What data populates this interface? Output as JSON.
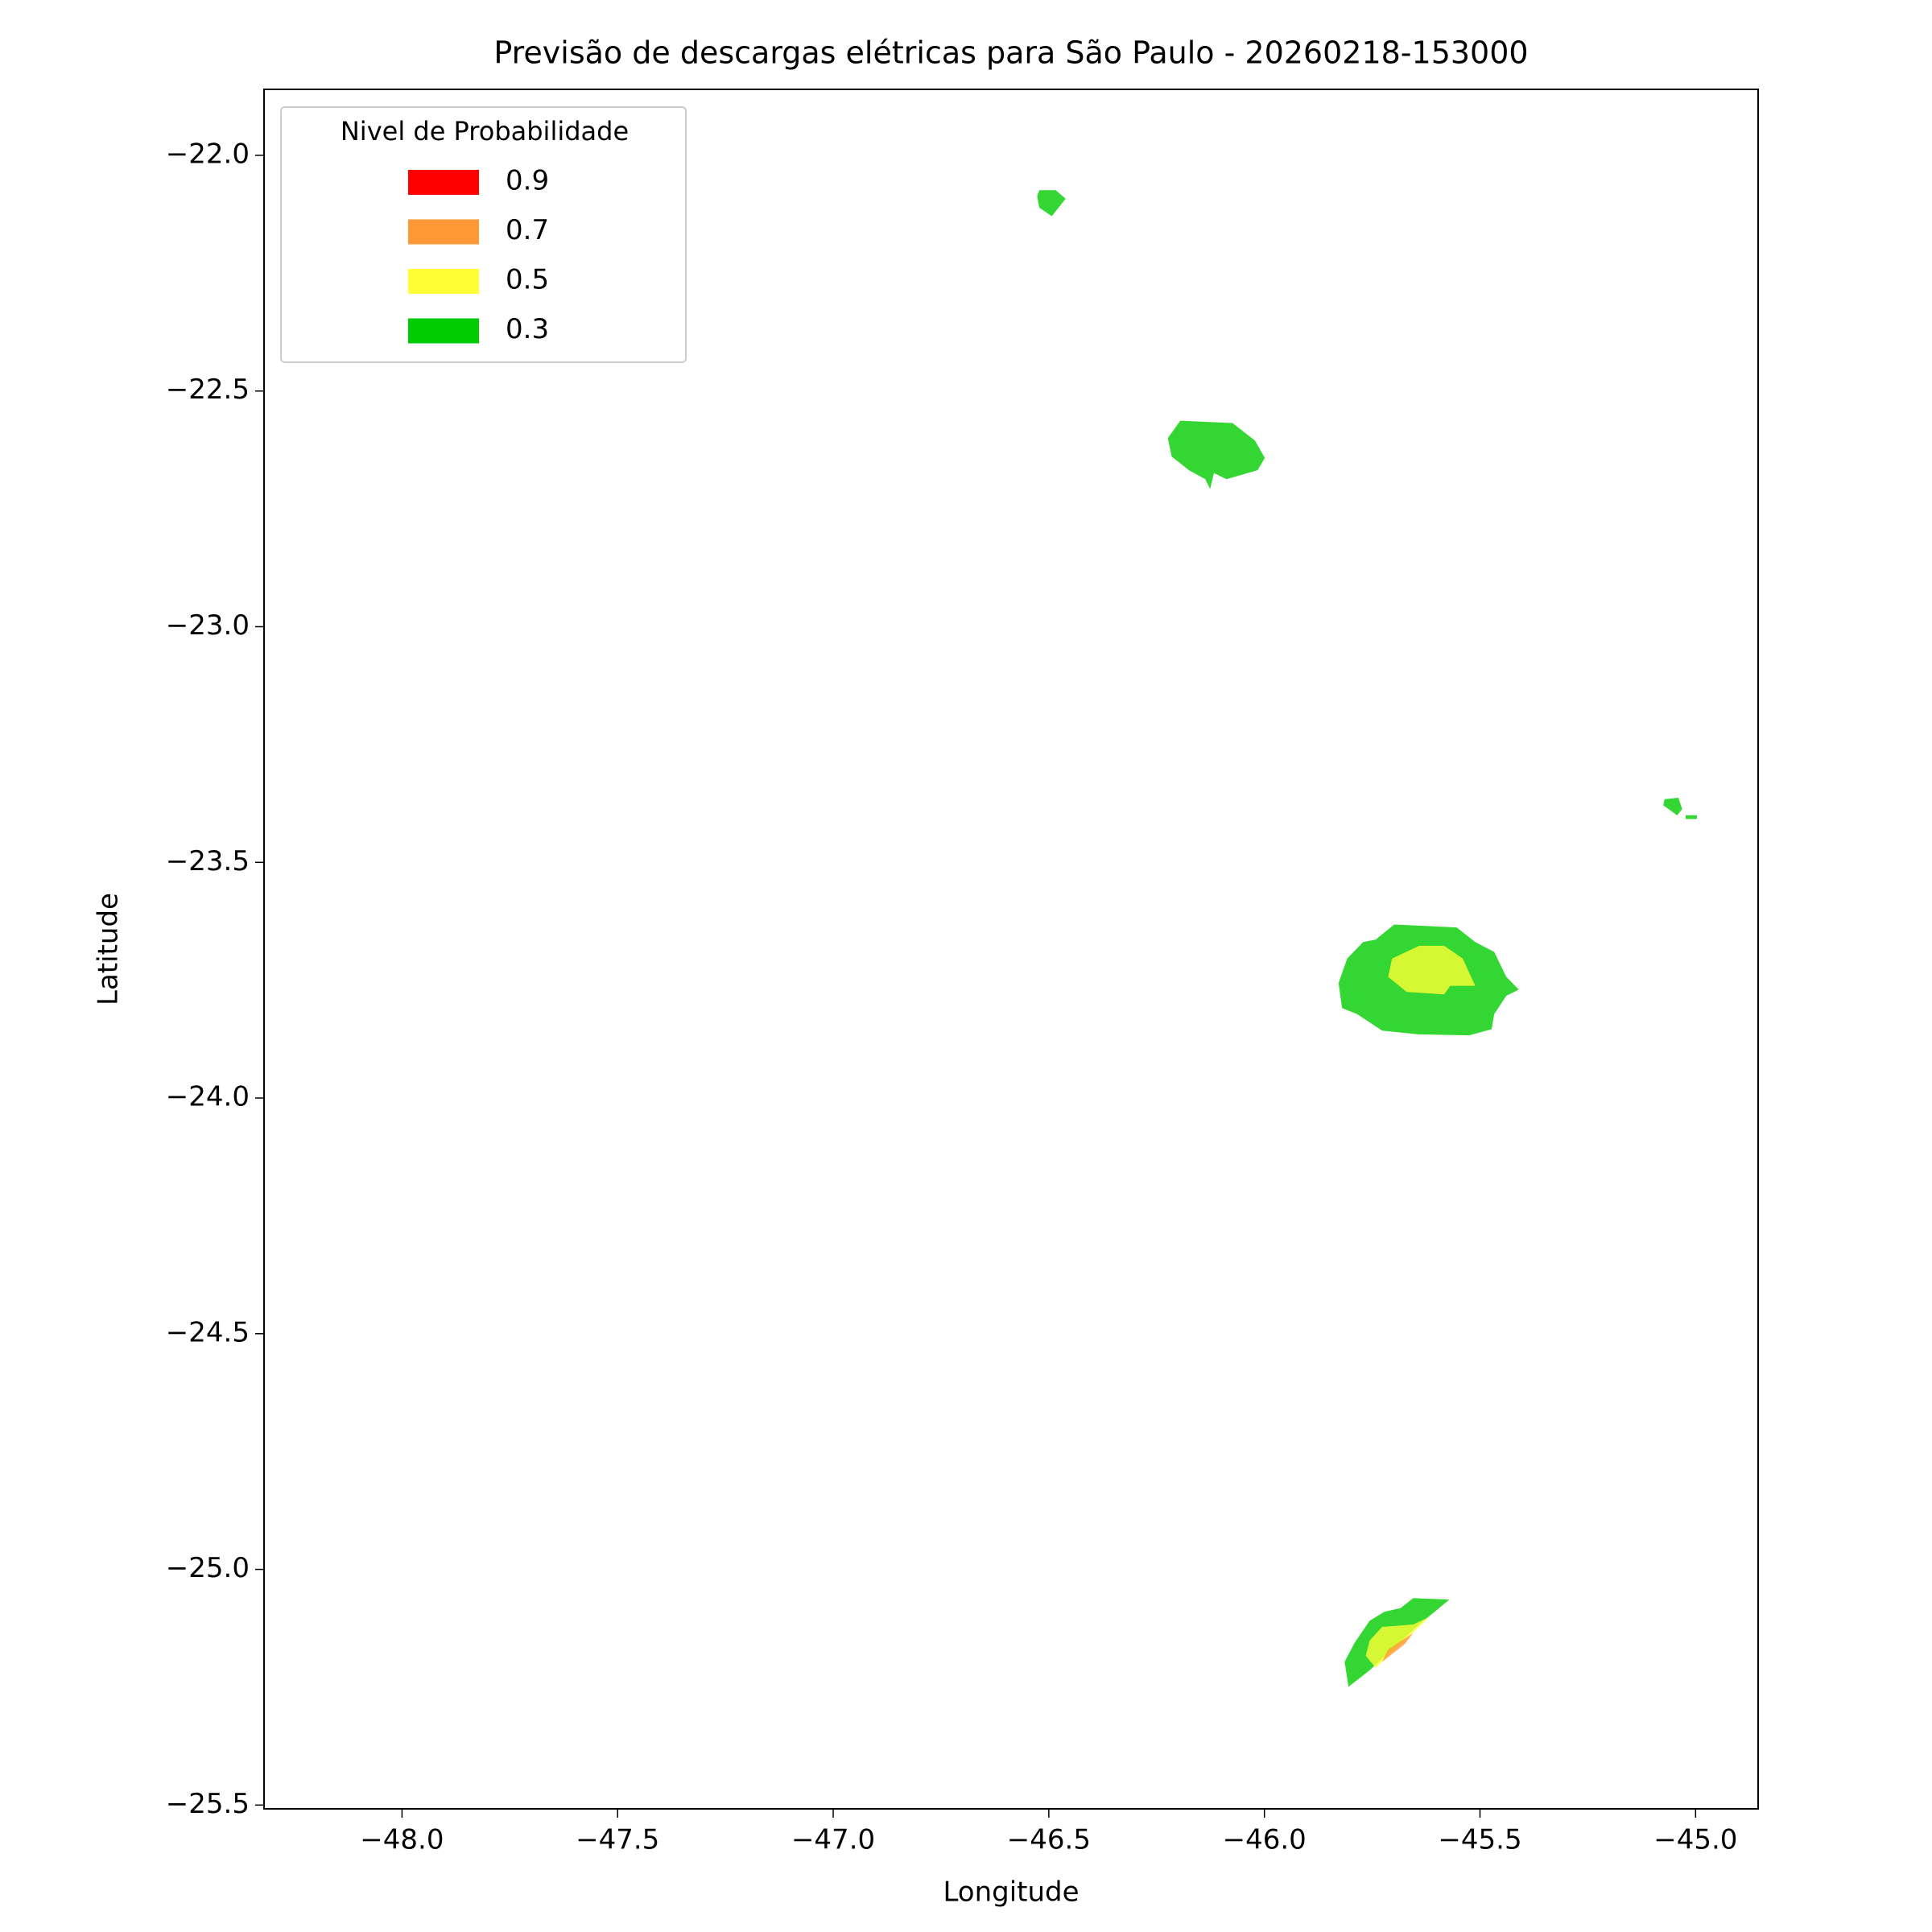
{
  "chart_data": {
    "type": "contour",
    "title": "Previsão de descargas elétricas para São Paulo - 20260218-153000",
    "xlabel": "Longitude",
    "ylabel": "Latitude",
    "xlim": [
      -48.32,
      -44.855
    ],
    "ylim": [
      -25.508,
      -21.86
    ],
    "xticks": [
      {
        "value": -48.0,
        "label": "−48.0"
      },
      {
        "value": -47.5,
        "label": "−47.5"
      },
      {
        "value": -47.0,
        "label": "−47.0"
      },
      {
        "value": -46.5,
        "label": "−46.5"
      },
      {
        "value": -46.0,
        "label": "−46.0"
      },
      {
        "value": -45.5,
        "label": "−45.5"
      },
      {
        "value": -45.0,
        "label": "−45.0"
      }
    ],
    "yticks": [
      {
        "value": -22.0,
        "label": "−22.0"
      },
      {
        "value": -22.5,
        "label": "−22.5"
      },
      {
        "value": -23.0,
        "label": "−23.0"
      },
      {
        "value": -23.5,
        "label": "−23.5"
      },
      {
        "value": -24.0,
        "label": "−24.0"
      },
      {
        "value": -24.5,
        "label": "−24.5"
      },
      {
        "value": -25.0,
        "label": "−25.0"
      },
      {
        "value": -25.5,
        "label": "−25.5"
      }
    ],
    "legend_title": "Nivel de Probabilidade",
    "legend_position": "upper left",
    "alpha": 0.8,
    "series": [
      {
        "name": "0.9",
        "color": "#ff0000"
      },
      {
        "name": "0.7",
        "color": "#ff9933"
      },
      {
        "name": "0.5",
        "color": "#ffff33"
      },
      {
        "name": "0.3",
        "color": "#00cc00"
      }
    ],
    "polygons": [
      {
        "series": 3,
        "x": [
          -46.522,
          -46.484,
          -46.461,
          -46.493,
          -46.522,
          -46.527
        ],
        "y": [
          -22.074,
          -22.074,
          -22.092,
          -22.129,
          -22.111,
          -22.087
        ]
      },
      {
        "series": 3,
        "x": [
          -46.195,
          -46.074,
          -46.022,
          -45.999,
          -46.016,
          -46.088,
          -46.117,
          -46.126,
          -46.137,
          -46.175,
          -46.215,
          -46.224
        ],
        "y": [
          -22.563,
          -22.568,
          -22.605,
          -22.642,
          -22.668,
          -22.687,
          -22.674,
          -22.708,
          -22.687,
          -22.668,
          -22.639,
          -22.6
        ]
      },
      {
        "series": 3,
        "x": [
          -45.072,
          -45.04,
          -45.031,
          -45.043,
          -45.075
        ],
        "y": [
          -23.366,
          -23.363,
          -23.387,
          -23.4,
          -23.379
        ]
      },
      {
        "series": 3,
        "x": [
          -45.023,
          -44.997,
          -44.997,
          -45.023
        ],
        "y": [
          -23.4,
          -23.4,
          -23.408,
          -23.408
        ]
      },
      {
        "series": 3,
        "x": [
          -45.699,
          -45.554,
          -45.511,
          -45.467,
          -45.439,
          -45.41,
          -45.439,
          -45.467,
          -45.473,
          -45.525,
          -45.641,
          -45.727,
          -45.785,
          -45.82,
          -45.828,
          -45.808,
          -45.771,
          -45.742
        ],
        "y": [
          -23.632,
          -23.638,
          -23.669,
          -23.69,
          -23.743,
          -23.77,
          -23.783,
          -23.822,
          -23.854,
          -23.867,
          -23.865,
          -23.857,
          -23.822,
          -23.809,
          -23.756,
          -23.704,
          -23.669,
          -23.664
        ]
      },
      {
        "series": 2,
        "x": [
          -45.641,
          -45.583,
          -45.54,
          -45.511,
          -45.569,
          -45.583,
          -45.67,
          -45.713,
          -45.704
        ],
        "y": [
          -23.677,
          -23.677,
          -23.704,
          -23.762,
          -23.762,
          -23.78,
          -23.775,
          -23.743,
          -23.704
        ]
      },
      {
        "series": 3,
        "x": [
          -45.655,
          -45.571,
          -45.641,
          -45.756,
          -45.805,
          -45.814,
          -45.791,
          -45.756,
          -45.722,
          -45.684
        ],
        "y": [
          -25.061,
          -25.064,
          -25.117,
          -25.214,
          -25.249,
          -25.196,
          -25.156,
          -25.109,
          -25.09,
          -25.082
        ]
      },
      {
        "series": 2,
        "x": [
          -45.727,
          -45.655,
          -45.618,
          -45.684,
          -45.742,
          -45.765,
          -45.756
        ],
        "y": [
          -25.122,
          -25.117,
          -25.101,
          -25.159,
          -25.209,
          -25.183,
          -25.151
        ]
      },
      {
        "series": 1,
        "x": [
          -45.713,
          -45.655,
          -45.675,
          -45.727
        ],
        "y": [
          -25.17,
          -25.135,
          -25.159,
          -25.196
        ]
      }
    ]
  }
}
